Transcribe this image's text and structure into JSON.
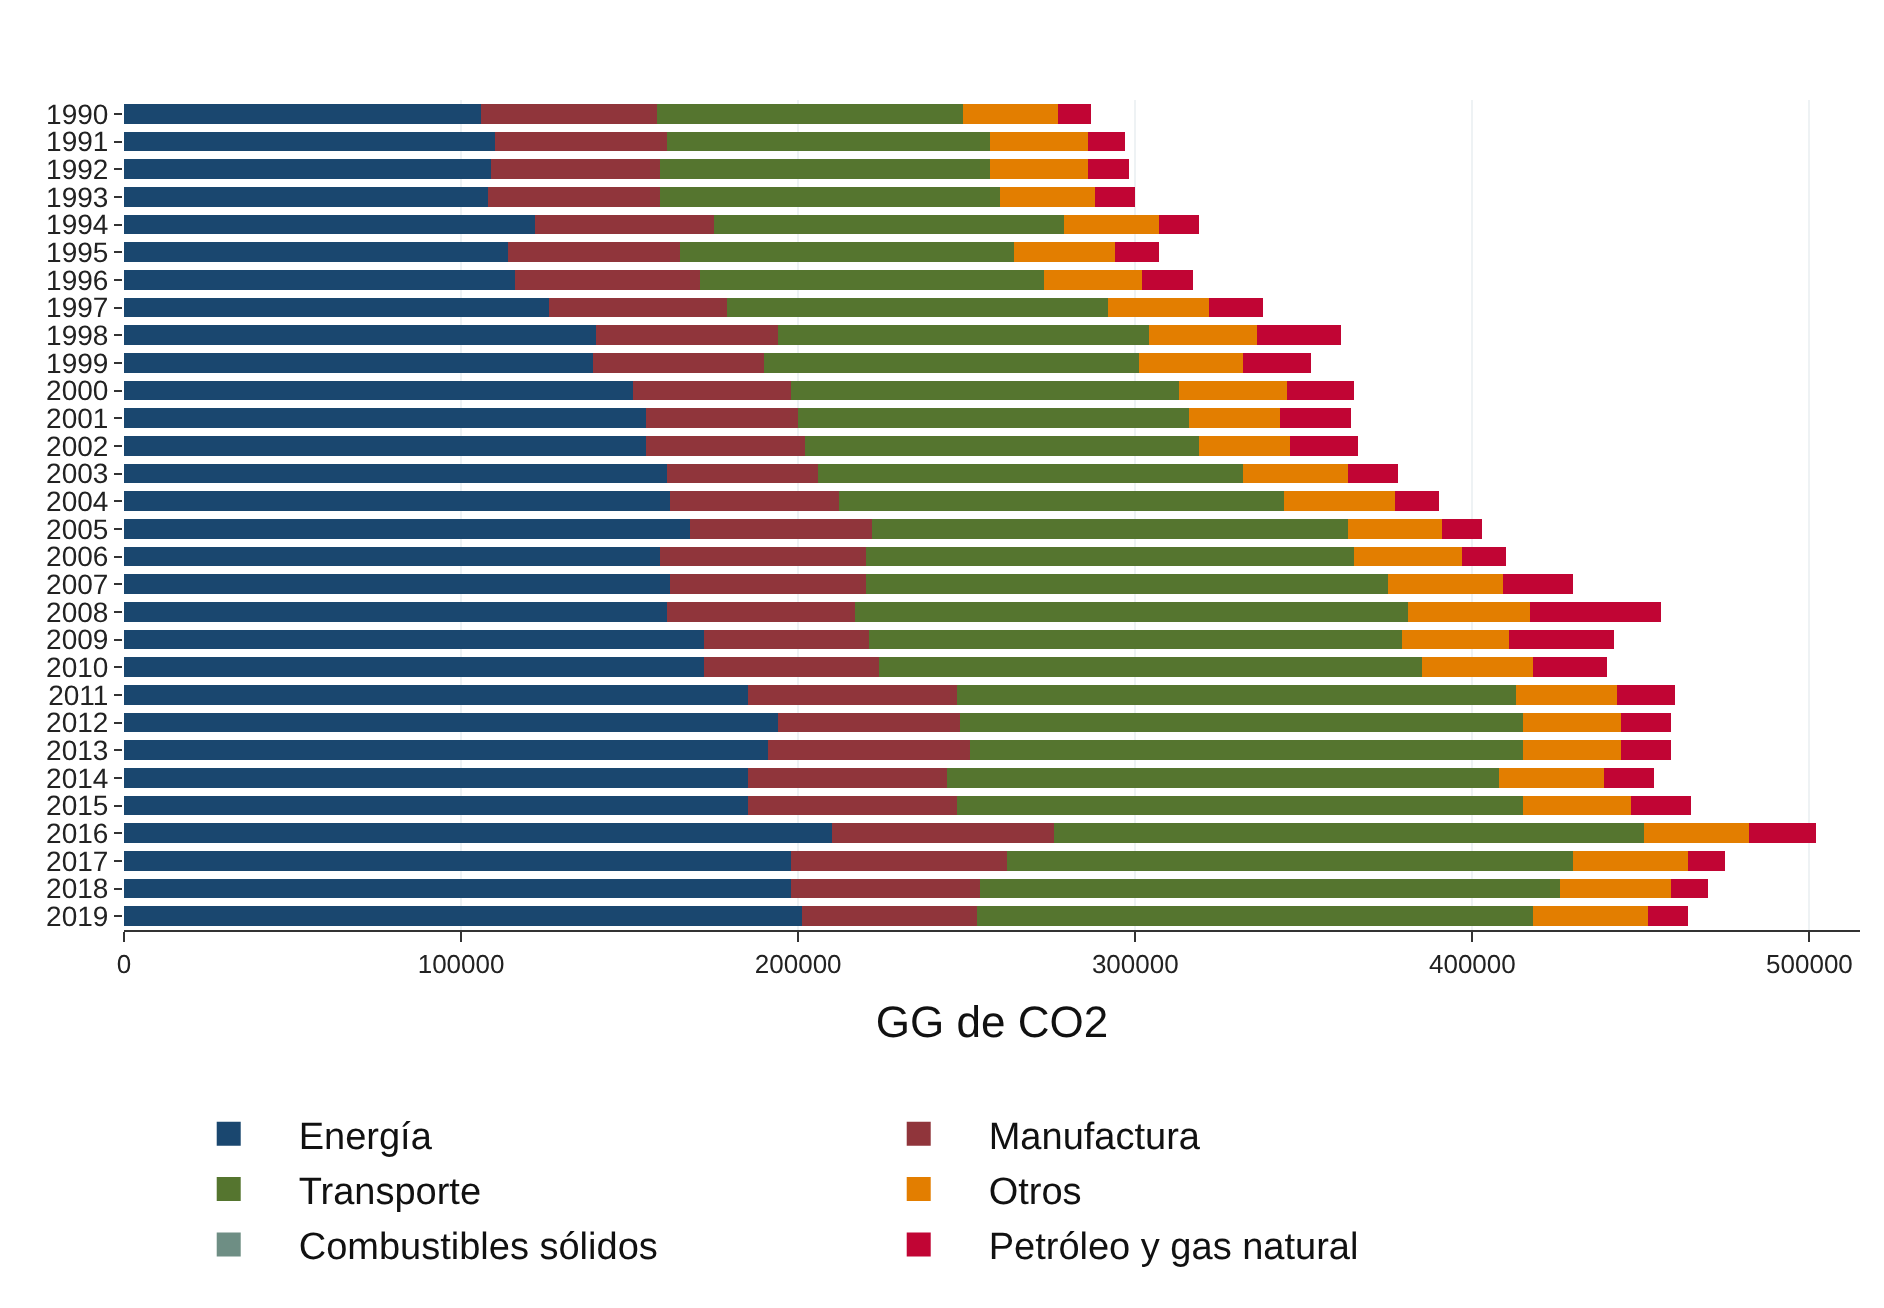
{
  "chart_data": {
    "type": "bar",
    "orientation": "horizontal",
    "stacked": true,
    "xlabel": "GG de CO2",
    "categories": [
      "1990",
      "1991",
      "1992",
      "1993",
      "1994",
      "1995",
      "1996",
      "1997",
      "1998",
      "1999",
      "2000",
      "2001",
      "2002",
      "2003",
      "2004",
      "2005",
      "2006",
      "2007",
      "2008",
      "2009",
      "2010",
      "2011",
      "2012",
      "2013",
      "2014",
      "2015",
      "2016",
      "2017",
      "2018",
      "2019"
    ],
    "series": [
      {
        "name": "Energía",
        "color": "#1a476f",
        "values": [
          106000,
          110000,
          109000,
          108000,
          122000,
          114000,
          116000,
          126000,
          140000,
          139000,
          151000,
          155000,
          155000,
          161000,
          162000,
          168000,
          159000,
          162000,
          161000,
          172000,
          172000,
          185000,
          194000,
          191000,
          185000,
          185000,
          210000,
          198000,
          198000,
          201000
        ]
      },
      {
        "name": "Manufactura",
        "color": "#90353b",
        "values": [
          52000,
          51000,
          50000,
          51000,
          53000,
          51000,
          55000,
          53000,
          54000,
          51000,
          47000,
          45000,
          47000,
          45000,
          50000,
          54000,
          61000,
          58000,
          56000,
          49000,
          52000,
          62000,
          54000,
          60000,
          59000,
          62000,
          66000,
          64000,
          56000,
          52000
        ]
      },
      {
        "name": "Transporte",
        "color": "#55752f",
        "values": [
          91000,
          96000,
          98000,
          101000,
          104000,
          99000,
          102000,
          113000,
          110000,
          111000,
          115000,
          116000,
          117000,
          126000,
          132000,
          141000,
          145000,
          155000,
          164000,
          158000,
          161000,
          166000,
          167000,
          164000,
          164000,
          168000,
          175000,
          168000,
          172000,
          165000
        ]
      },
      {
        "name": "Otros",
        "color": "#e37e00",
        "values": [
          28000,
          29000,
          29000,
          28000,
          28000,
          30000,
          29000,
          30000,
          32000,
          31000,
          32000,
          27000,
          27000,
          31000,
          33000,
          28000,
          32000,
          34000,
          36000,
          32000,
          33000,
          30000,
          29000,
          29000,
          31000,
          32000,
          31000,
          34000,
          33000,
          34000
        ]
      },
      {
        "name": "Combustibles sólidos",
        "color": "#6e8e84",
        "values": [
          0,
          0,
          0,
          0,
          0,
          0,
          0,
          0,
          0,
          0,
          0,
          0,
          0,
          0,
          0,
          0,
          0,
          0,
          0,
          0,
          0,
          0,
          0,
          0,
          0,
          0,
          0,
          0,
          0,
          0
        ]
      },
      {
        "name": "Petróleo y gas natural",
        "color": "#c10534",
        "values": [
          10000,
          11000,
          12000,
          12000,
          12000,
          13000,
          15000,
          16000,
          25000,
          20000,
          20000,
          21000,
          20000,
          15000,
          13000,
          12000,
          13000,
          21000,
          39000,
          31000,
          22000,
          17000,
          15000,
          15000,
          15000,
          18000,
          20000,
          11000,
          11000,
          12000
        ]
      }
    ],
    "xlim": [
      0,
      515000
    ],
    "xticks": [
      0,
      100000,
      200000,
      300000,
      400000,
      500000
    ],
    "grid": "x",
    "legend": "bottom"
  }
}
